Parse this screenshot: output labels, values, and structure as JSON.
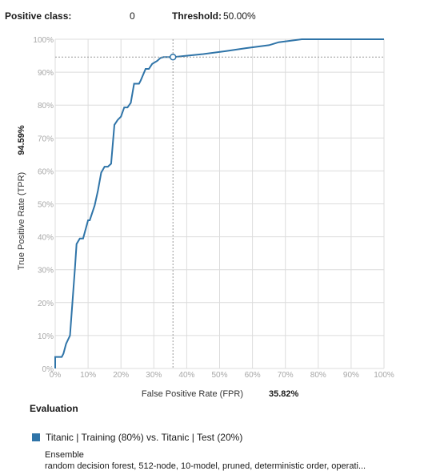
{
  "header": {
    "positive_class_label": "Positive class:",
    "positive_class_value": "0",
    "threshold_label": "Threshold:",
    "threshold_value": "50.00%"
  },
  "chart_data": {
    "type": "line",
    "title": "",
    "xlabel": "False Positive Rate (FPR)",
    "ylabel": "True Positive Rate (TPR)",
    "x_value_label": "35.82%",
    "y_value_label": "94.59%",
    "xlim": [
      0,
      100
    ],
    "ylim": [
      0,
      100
    ],
    "grid": true,
    "x_ticks": [
      "0%",
      "10%",
      "20%",
      "30%",
      "40%",
      "50%",
      "60%",
      "70%",
      "80%",
      "90%",
      "100%"
    ],
    "y_ticks": [
      "0%",
      "10%",
      "20%",
      "30%",
      "40%",
      "50%",
      "60%",
      "70%",
      "80%",
      "90%",
      "100%"
    ],
    "threshold_point": {
      "x": 35.82,
      "y": 94.59
    },
    "series": [
      {
        "name": "Titanic | Training (80%) vs. Titanic | Test (20%)",
        "color": "#2f74a8",
        "x": [
          0,
          0,
          2,
          2.5,
          3.3,
          4.5,
          6,
          6.5,
          7.5,
          8.5,
          10,
          10.5,
          12,
          13,
          14,
          15,
          16,
          17,
          18,
          19,
          20,
          21,
          22,
          23,
          24,
          25.5,
          26,
          27.5,
          28.5,
          29.5,
          31,
          32,
          33,
          34.5,
          36,
          45,
          52,
          58,
          65,
          68,
          75,
          100
        ],
        "y": [
          0,
          3.5,
          3.5,
          4.5,
          7.5,
          10,
          30.5,
          37.8,
          39.5,
          39.5,
          45,
          45,
          49.5,
          54,
          59.5,
          61.3,
          61.3,
          62.2,
          74,
          75.5,
          76.5,
          79.3,
          79.3,
          80.7,
          86.5,
          86.5,
          87.5,
          91,
          91,
          92.5,
          93.4,
          94.3,
          94.59,
          94.59,
          94.59,
          95.5,
          96.4,
          97.3,
          98.2,
          99.1,
          100,
          100
        ]
      }
    ]
  },
  "evaluation": {
    "title": "Evaluation",
    "legend_label": "Titanic | Training (80%) vs. Titanic | Test (20%)",
    "legend_color": "#2f74a8",
    "model_type": "Ensemble",
    "model_description": "random decision forest, 512-node, 10-model, pruned, deterministic order, operati..."
  }
}
